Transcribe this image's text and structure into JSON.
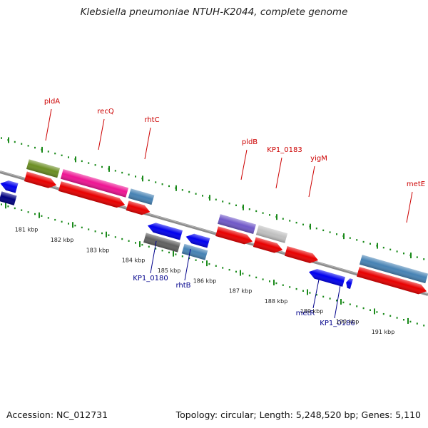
{
  "title": "Klebsiella pneumoniae NTUH-K2044, complete genome",
  "accession": "Accession: NC_012731",
  "stats": "Topology: circular; Length: 5,248,520 bp; Genes: 5,110",
  "colors": {
    "backbone": "#8c8c8c",
    "tick": "#1a8a1a",
    "forward_label": "#cc0000",
    "reverse_label": "#00008b",
    "red": "#e80000",
    "blue": "#0000ee",
    "navy": "#000080",
    "steel": "#4682b4",
    "olive": "#6b8e23",
    "pink": "#ee1493",
    "purple": "#7058c8",
    "silver": "#c0c0c0",
    "gray": "#606060"
  },
  "scale": [
    "181 kbp",
    "182 kbp",
    "183 kbp",
    "184 kbp",
    "185 kbp",
    "186 kbp",
    "187 kbp",
    "188 kbp",
    "189 kbp",
    "190 kbp",
    "191 kbp"
  ],
  "forward_labels": [
    "pldA",
    "recQ",
    "rhtC",
    "pldB",
    "KP1_0183",
    "yigM",
    "metE"
  ],
  "reverse_labels": [
    "KP1_0180",
    "rhtB",
    "metR",
    "KP1_0186"
  ]
}
